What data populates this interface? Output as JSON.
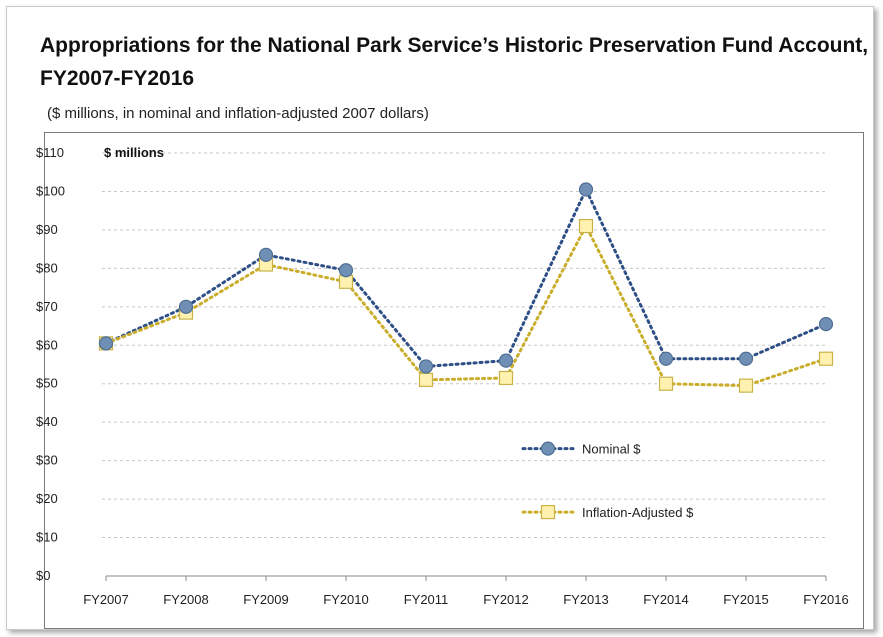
{
  "title": "Appropriations for the National Park Service’s Historic Preservation Fund Account, FY2007-FY2016",
  "subtitle": "($ millions, in nominal and inflation-adjusted 2007 dollars)",
  "colors": {
    "nominal_fill": "#6f8fb5",
    "nominal_stroke": "#4f6e94",
    "nominal_line": "#2e4f86",
    "adjusted_fill": "#fff2b0",
    "adjusted_stroke": "#c9b24a",
    "adjusted_line": "#c9ad2b",
    "grid": "#c8c8c8"
  },
  "chart_data": {
    "type": "line",
    "title": "Appropriations for the National Park Service’s Historic Preservation Fund Account, FY2007-FY2016",
    "subtitle": "($ millions, in nominal and inflation-adjusted 2007 dollars)",
    "ylabel": "$ millions",
    "xlabel": "",
    "categories": [
      "FY2007",
      "FY2008",
      "FY2009",
      "FY2010",
      "FY2011",
      "FY2012",
      "FY2013",
      "FY2014",
      "FY2015",
      "FY2016"
    ],
    "ylim": [
      0,
      110
    ],
    "yticks": [
      0,
      10,
      20,
      30,
      40,
      50,
      60,
      70,
      80,
      90,
      100,
      110
    ],
    "ytick_labels": [
      "$0",
      "$10",
      "$20",
      "$30",
      "$40",
      "$50",
      "$60",
      "$70",
      "$80",
      "$90",
      "$100",
      "$110"
    ],
    "grid": true,
    "legend_position": "center-right",
    "series": [
      {
        "name": "Nominal $",
        "values": [
          60.5,
          70.0,
          83.5,
          79.5,
          54.5,
          56.0,
          100.5,
          56.5,
          56.5,
          65.5
        ]
      },
      {
        "name": "Inflation-Adjusted $",
        "values": [
          60.5,
          68.5,
          81.0,
          76.5,
          51.0,
          51.5,
          91.0,
          50.0,
          49.5,
          56.5
        ]
      }
    ]
  }
}
